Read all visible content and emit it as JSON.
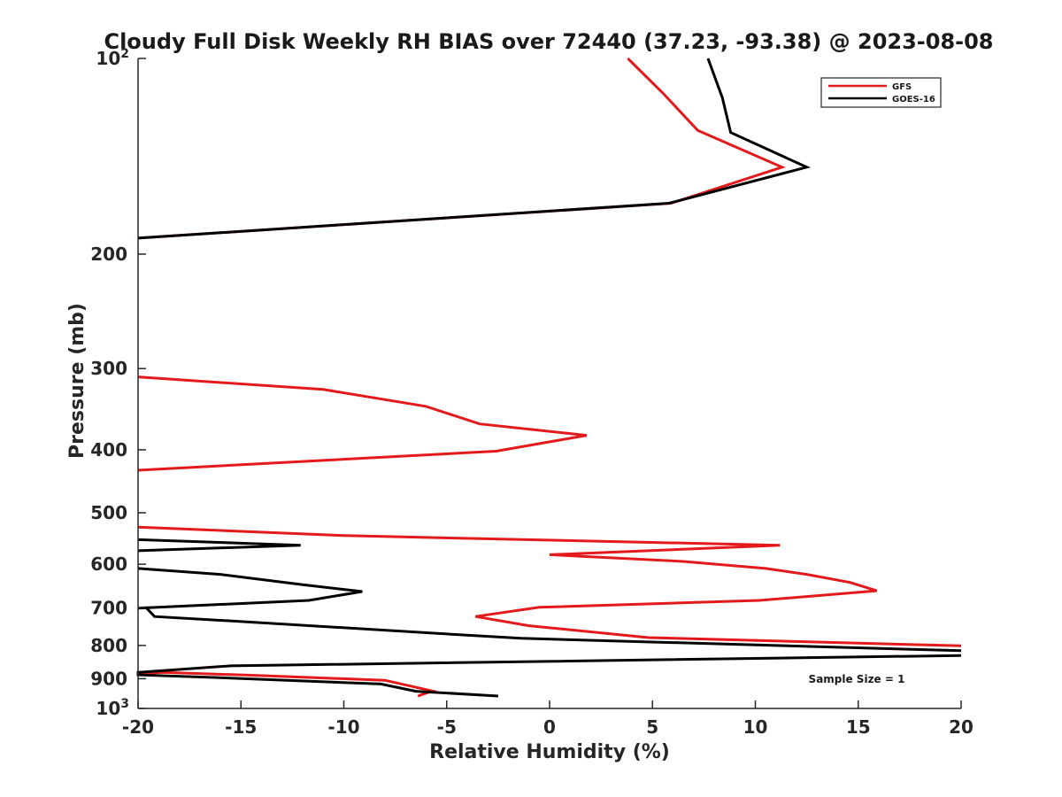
{
  "chart_data": {
    "type": "line",
    "title": "Cloudy Full Disk Weekly RH BIAS over 72440 (37.23, -93.38) @ 2023-08-08",
    "xlabel": "Relative Humidity (%)",
    "ylabel": "Pressure (mb)",
    "xlim": [
      -20,
      20
    ],
    "ylim": [
      100,
      1000
    ],
    "y_scale": "log",
    "y_reversed": true,
    "grid": false,
    "legend_position": "top-right",
    "x_ticks": [
      -20,
      -15,
      -10,
      -5,
      0,
      5,
      10,
      15,
      20
    ],
    "x_tick_labels": [
      "-20",
      "-15",
      "-10",
      "-5",
      "0",
      "5",
      "10",
      "15",
      "20"
    ],
    "y_ticks": [
      {
        "value": 100,
        "base": "10",
        "exp": "2"
      },
      {
        "value": 200,
        "label": "200"
      },
      {
        "value": 300,
        "label": "300"
      },
      {
        "value": 400,
        "label": "400"
      },
      {
        "value": 500,
        "label": "500"
      },
      {
        "value": 600,
        "label": "600"
      },
      {
        "value": 700,
        "label": "700"
      },
      {
        "value": 800,
        "label": "800"
      },
      {
        "value": 900,
        "label": "900"
      },
      {
        "value": 1000,
        "base": "10",
        "exp": "3"
      }
    ],
    "series": [
      {
        "name": "GFS",
        "color": "#e31a1c",
        "segments": [
          [
            [
              3.8,
              100
            ],
            [
              5.5,
              113
            ],
            [
              7.2,
              129
            ],
            [
              11.3,
              147
            ],
            [
              5.9,
              167
            ],
            [
              -20,
              189
            ]
          ],
          [
            [
              -20,
              309
            ],
            [
              -11,
              323
            ],
            [
              -6,
              343
            ],
            [
              -3.4,
              365
            ],
            [
              1.8,
              380
            ],
            [
              -2.6,
              402
            ],
            [
              -20,
              430
            ]
          ],
          [
            [
              -20,
              526
            ],
            [
              -10,
              542
            ],
            [
              11.2,
              561
            ],
            [
              0,
              580
            ],
            [
              6.5,
              594
            ],
            [
              10.5,
              609
            ],
            [
              12.5,
              622
            ],
            [
              14.6,
              640
            ],
            [
              15.9,
              659
            ],
            [
              10.2,
              682
            ],
            [
              -0.5,
              699
            ],
            [
              -3.6,
              722
            ],
            [
              -1,
              746
            ],
            [
              4.8,
              778
            ],
            [
              20,
              801
            ]
          ],
          [
            [
              -20,
              885
            ],
            [
              -18.8,
              880
            ],
            [
              -14.5,
              889
            ],
            [
              -8,
              905
            ],
            [
              -5.7,
              940
            ],
            [
              -6.4,
              957
            ]
          ]
        ]
      },
      {
        "name": "GOES-16",
        "color": "#000000",
        "segments": [
          [
            [
              7.7,
              100
            ],
            [
              8.4,
              115
            ],
            [
              8.8,
              130
            ],
            [
              12.5,
              147
            ],
            [
              5.8,
              167
            ],
            [
              -20,
              189
            ]
          ],
          [
            [
              -20,
              550
            ],
            [
              -12.1,
              561
            ],
            [
              -20,
              572
            ]
          ],
          [
            [
              -20,
              609
            ],
            [
              -16,
              622
            ],
            [
              -12,
              645
            ],
            [
              -9.1,
              661
            ],
            [
              -11.7,
              682
            ],
            [
              -20,
              701
            ],
            [
              -19.6,
              700
            ],
            [
              -19.2,
              722
            ],
            [
              -14,
              738
            ],
            [
              -5,
              768
            ],
            [
              -1.4,
              780
            ],
            [
              20,
              815
            ]
          ],
          [
            [
              20,
              829
            ],
            [
              -15.5,
              860
            ],
            [
              -20,
              880
            ],
            [
              -20,
              888
            ],
            [
              -16,
              897
            ],
            [
              -8.2,
              917
            ],
            [
              -6.5,
              941
            ],
            [
              -2.5,
              957
            ]
          ]
        ]
      }
    ],
    "annotations": [
      "Sample Size = 1"
    ]
  }
}
